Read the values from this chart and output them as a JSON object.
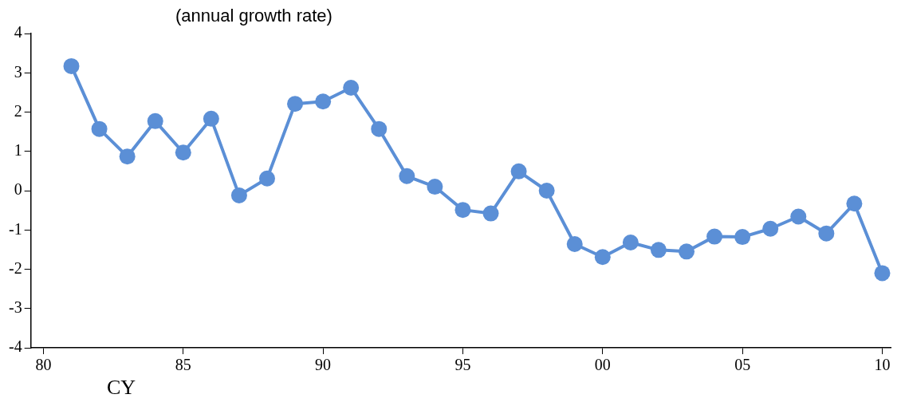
{
  "chart_data": {
    "type": "line",
    "title": "(annual growth rate)",
    "annotations": [
      "CY"
    ],
    "x": [
      1981,
      1982,
      1983,
      1984,
      1985,
      1986,
      1987,
      1988,
      1989,
      1990,
      1991,
      1992,
      1993,
      1994,
      1995,
      1996,
      1997,
      1998,
      1999,
      2000,
      2001,
      2002,
      2003,
      2004,
      2005,
      2006,
      2007,
      2008,
      2009,
      2010
    ],
    "series": [
      {
        "color": "#5b8fd6",
        "values": [
          3.17,
          1.57,
          0.87,
          1.77,
          0.97,
          1.83,
          -0.12,
          0.31,
          2.21,
          2.27,
          2.62,
          1.57,
          0.37,
          0.1,
          -0.49,
          -0.58,
          0.49,
          0.0,
          -1.36,
          -1.69,
          -1.32,
          -1.51,
          -1.55,
          -1.17,
          -1.18,
          -0.97,
          -0.66,
          -1.09,
          -0.33,
          -2.1
        ]
      }
    ],
    "xlim": [
      1979.55,
      2010.3
    ],
    "xticks": [
      {
        "value": 1980,
        "label": "80"
      },
      {
        "value": 1985,
        "label": "85"
      },
      {
        "value": 1990,
        "label": "90"
      },
      {
        "value": 1995,
        "label": "95"
      },
      {
        "value": 2000,
        "label": "00"
      },
      {
        "value": 2005,
        "label": "05"
      },
      {
        "value": 2010,
        "label": "10"
      }
    ],
    "ylim": [
      -4,
      4
    ],
    "yticks": [
      -4,
      -3,
      -2,
      -1,
      0,
      1,
      2,
      3,
      4
    ],
    "grid": false,
    "legend": false,
    "marker": "circle",
    "line_style": "solid"
  }
}
